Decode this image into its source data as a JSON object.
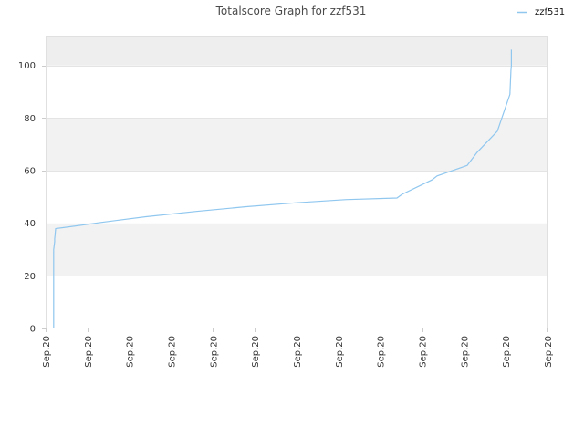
{
  "chart_data": {
    "type": "line",
    "title": "Totalscore Graph for zzf531",
    "xlabel": "",
    "ylabel": "",
    "ylim": [
      0,
      111
    ],
    "y_ticks": [
      0,
      20,
      40,
      60,
      80,
      100
    ],
    "x_tick_labels": [
      "Sep.20",
      "Sep.20",
      "Sep.20",
      "Sep.20",
      "Sep.20",
      "Sep.20",
      "Sep.20",
      "Sep.20",
      "Sep.20",
      "Sep.20",
      "Sep.20",
      "Sep.20",
      "Sep.20"
    ],
    "grid": true,
    "alternating_bands": true,
    "legend": {
      "position": "top-right"
    },
    "colors": {
      "series": "#90c7ef",
      "band_dark": "#f2f2f2",
      "band_light": "#ffffff",
      "gridline": "#e4e4e4"
    },
    "series": [
      {
        "name": "zzf531",
        "x": [
          0.016,
          0.016,
          0.018,
          0.018,
          0.02,
          0.06,
          0.11,
          0.2,
          0.3,
          0.4,
          0.5,
          0.6,
          0.7,
          0.71,
          0.77,
          0.78,
          0.84,
          0.86,
          0.9,
          0.925,
          0.927,
          0.928,
          0.928
        ],
        "y": [
          0,
          30,
          33,
          34,
          38,
          39,
          40.3,
          42.5,
          44.5,
          46.3,
          47.8,
          49,
          49.6,
          51,
          56.5,
          58,
          62,
          67,
          75,
          89,
          98,
          100,
          106
        ]
      }
    ]
  }
}
